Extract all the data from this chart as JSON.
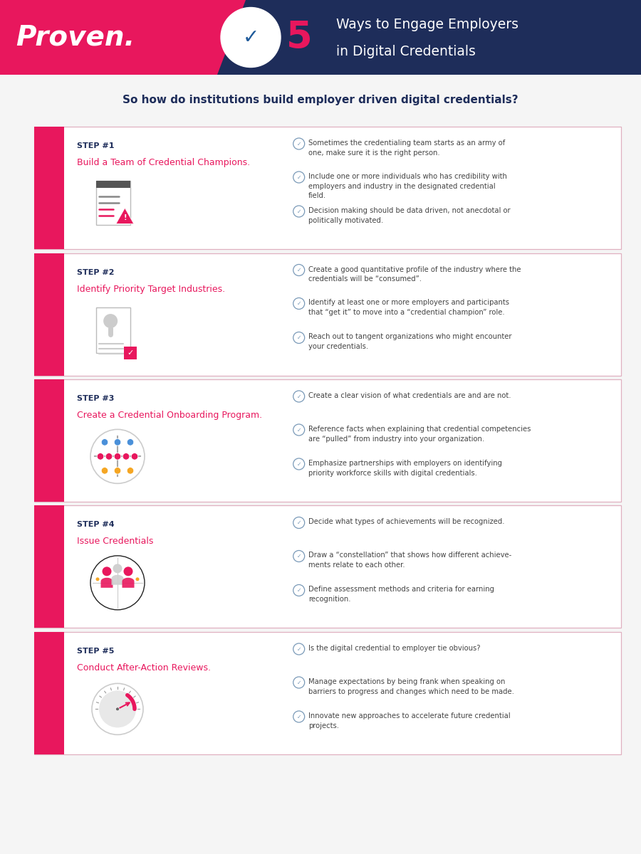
{
  "bg_color": "#f5f5f5",
  "header_pink": "#e8175d",
  "header_navy": "#1e2d5a",
  "accent_pink": "#e8175d",
  "text_dark": "#1e2d5a",
  "text_gray": "#444444",
  "card_border": "#e0b0c0",
  "card_bg": "#ffffff",
  "left_bar_color": "#e8175d",
  "check_color": "#7a9ab8",
  "title": "So how do institutions build employer driven digital credentials?",
  "header_text": "Proven.",
  "header_number": "5",
  "header_subtitle1": "Ways to Engage Employers",
  "header_subtitle2": "in Digital Credentials",
  "steps": [
    {
      "step_label": "STEP #1",
      "step_title": "Build a Team of Credential Champions.",
      "bullets": [
        "Sometimes the credentialing team starts as an army of\none, make sure it is the right person.",
        "Include one or more individuals who has credibility with\nemployers and industry in the designated credential\nfield.",
        "Decision making should be data driven, not anecdotal or\npolitically motivated."
      ]
    },
    {
      "step_label": "STEP #2",
      "step_title": "Identify Priority Target Industries.",
      "bullets": [
        "Create a good quantitative profile of the industry where the\ncredentials will be “consumed”.",
        "Identify at least one or more employers and participants\nthat “get it” to move into a “credential champion” role.",
        "Reach out to tangent organizations who might encounter\nyour credentials."
      ]
    },
    {
      "step_label": "STEP #3",
      "step_title": "Create a Credential Onboarding Program.",
      "bullets": [
        "Create a clear vision of what credentials are and are not.",
        "Reference facts when explaining that credential competencies\nare “pulled” from industry into your organization.",
        "Emphasize partnerships with employers on identifying\npriority workforce skills with digital credentials."
      ]
    },
    {
      "step_label": "STEP #4",
      "step_title": "Issue Credentials",
      "bullets": [
        "Decide what types of achievements will be recognized.",
        "Draw a “constellation” that shows how different achieve-\nments relate to each other.",
        "Define assessment methods and criteria for earning\nrecognition."
      ]
    },
    {
      "step_label": "STEP #5",
      "step_title": "Conduct After-Action Reviews.",
      "bullets": [
        "Is the digital credential to employer tie obvious?",
        "Manage expectations by being frank when speaking on\nbarriers to progress and changes which need to be made.",
        "Innovate new approaches to accelerate future credential\nprojects."
      ]
    }
  ]
}
